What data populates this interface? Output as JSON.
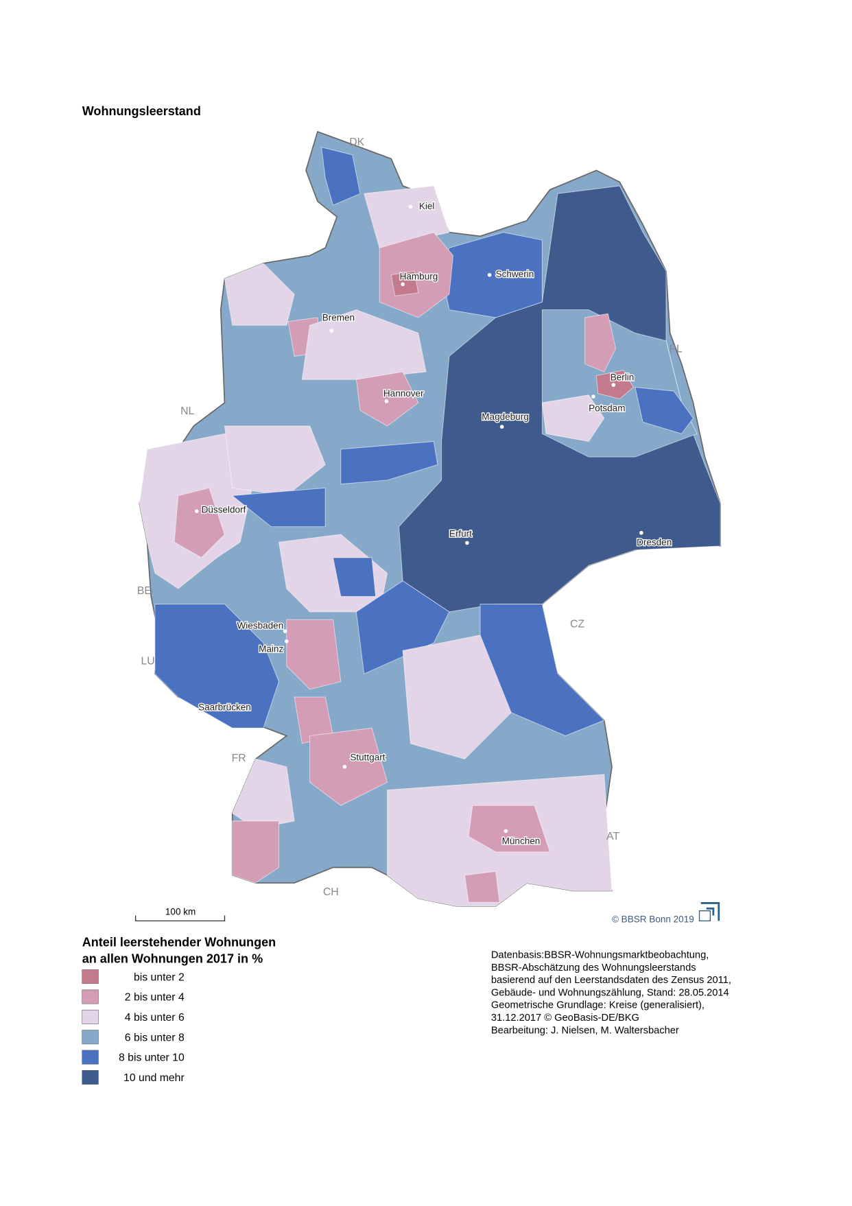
{
  "title": "Wohnungsleerstand",
  "cities": [
    {
      "label": "Kiel"
    },
    {
      "label": "Hamburg"
    },
    {
      "label": "Schwerin"
    },
    {
      "label": "Bremen"
    },
    {
      "label": "Berlin"
    },
    {
      "label": "Potsdam"
    },
    {
      "label": "Hannover"
    },
    {
      "label": "Magdeburg"
    },
    {
      "label": "Düsseldorf"
    },
    {
      "label": "Erfurt"
    },
    {
      "label": "Dresden"
    },
    {
      "label": "Wiesbaden"
    },
    {
      "label": "Mainz"
    },
    {
      "label": "Saarbrücken"
    },
    {
      "label": "Stuttgart"
    },
    {
      "label": "München"
    }
  ],
  "countries": [
    "DK",
    "PL",
    "NL",
    "BE",
    "LU",
    "FR",
    "CH",
    "AT",
    "CZ"
  ],
  "scale_bar": "100 km",
  "copyright": "© BBSR Bonn 2019",
  "legend": {
    "title_lines": [
      "Anteil leerstehender Wohnungen",
      "an allen Wohnungen 2017 in %"
    ],
    "items": [
      {
        "label": "bis unter 2",
        "color": "#c27a8c"
      },
      {
        "label": "2 bis unter 4",
        "color": "#d39db6"
      },
      {
        "label": "4 bis unter 6",
        "color": "#e3d4e7"
      },
      {
        "label": "6 bis unter 8",
        "color": "#87a9c9"
      },
      {
        "label": "8 bis unter 10",
        "color": "#4a72c0"
      },
      {
        "label": "10 und mehr",
        "color": "#3f5a8c"
      }
    ]
  },
  "source_lines": [
    "Datenbasis:BBSR-Wohnungsmarktbeobachtung,",
    "BBSR-Abschätzung des Wohnungsleerstands",
    "basierend auf den Leerstandsdaten des Zensus 2011,",
    "Gebäude- und Wohnungszählung, Stand: 28.05.2014",
    "Geometrische Grundlage: Kreise (generalisiert),",
    "31.12.2017 © GeoBasis-DE/BKG",
    "Bearbeitung: J. Nielsen, M. Waltersbacher"
  ]
}
